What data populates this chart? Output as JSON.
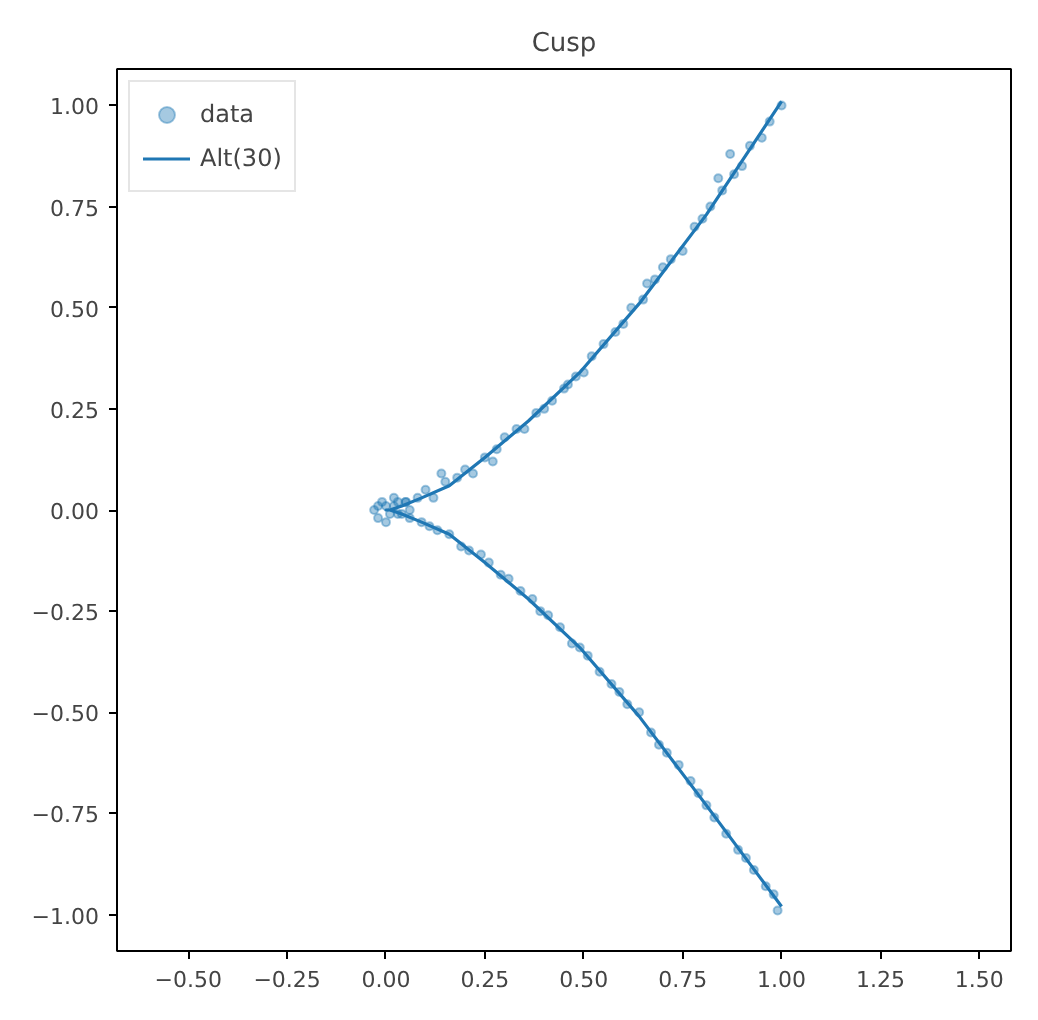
{
  "chart_data": {
    "type": "scatter",
    "title": "Cusp",
    "xlim": [
      -0.68,
      1.58
    ],
    "ylim": [
      -1.09,
      1.09
    ],
    "xticks": [
      {
        "value": -0.5,
        "label": "−0.50"
      },
      {
        "value": -0.25,
        "label": "−0.25"
      },
      {
        "value": 0,
        "label": "0.00"
      },
      {
        "value": 0.25,
        "label": "0.25"
      },
      {
        "value": 0.5,
        "label": "0.50"
      },
      {
        "value": 0.75,
        "label": "0.75"
      },
      {
        "value": 1,
        "label": "1.00"
      },
      {
        "value": 1.25,
        "label": "1.25"
      },
      {
        "value": 1.5,
        "label": "1.50"
      }
    ],
    "yticks": [
      {
        "value": -1,
        "label": "−1.00"
      },
      {
        "value": -0.75,
        "label": "−0.75"
      },
      {
        "value": -0.5,
        "label": "−0.50"
      },
      {
        "value": -0.25,
        "label": "−0.25"
      },
      {
        "value": 0,
        "label": "0.00"
      },
      {
        "value": 0.25,
        "label": "0.25"
      },
      {
        "value": 0.5,
        "label": "0.50"
      },
      {
        "value": 0.75,
        "label": "0.75"
      },
      {
        "value": 1,
        "label": "1.00"
      }
    ],
    "grid": false,
    "legend": "top left",
    "series": [
      {
        "name": "data",
        "marker": "circle",
        "color": "#1f77b4",
        "x": [
          0.02,
          0.05,
          0.08,
          0.1,
          0.12,
          0.15,
          0.18,
          0.2,
          0.22,
          0.25,
          0.28,
          0.3,
          0.33,
          0.35,
          0.38,
          0.4,
          0.42,
          0.45,
          0.48,
          0.5,
          0.52,
          0.55,
          0.58,
          0.6,
          0.62,
          0.65,
          0.68,
          0.7,
          0.72,
          0.75,
          0.78,
          0.8,
          0.82,
          0.85,
          0.88,
          0.9,
          0.92,
          0.95,
          0.97,
          1.0,
          0.84,
          0.87,
          0.66,
          0.46,
          0.27,
          0.14,
          0.03,
          0.06,
          0.09,
          0.11,
          0.13,
          0.16,
          0.19,
          0.21,
          0.24,
          0.26,
          0.29,
          0.31,
          0.34,
          0.37,
          0.39,
          0.41,
          0.44,
          0.47,
          0.49,
          0.51,
          0.54,
          0.57,
          0.59,
          0.61,
          0.64,
          0.67,
          0.69,
          0.71,
          0.74,
          0.77,
          0.79,
          0.81,
          0.83,
          0.86,
          0.89,
          0.91,
          0.93,
          0.96,
          0.98,
          0.99,
          -0.03,
          -0.02,
          0.0,
          0.01,
          0.03,
          -0.01,
          0.04,
          0.06,
          0.0,
          0.02,
          -0.02,
          0.05
        ],
        "values": [
          0.01,
          0.02,
          0.03,
          0.05,
          0.03,
          0.07,
          0.08,
          0.1,
          0.09,
          0.13,
          0.15,
          0.18,
          0.2,
          0.2,
          0.24,
          0.25,
          0.27,
          0.3,
          0.33,
          0.34,
          0.38,
          0.41,
          0.44,
          0.46,
          0.5,
          0.52,
          0.57,
          0.6,
          0.62,
          0.64,
          0.7,
          0.72,
          0.75,
          0.79,
          0.83,
          0.85,
          0.9,
          0.92,
          0.96,
          1.0,
          0.82,
          0.88,
          0.56,
          0.31,
          0.12,
          0.09,
          -0.01,
          -0.02,
          -0.03,
          -0.04,
          -0.05,
          -0.06,
          -0.09,
          -0.1,
          -0.11,
          -0.13,
          -0.16,
          -0.17,
          -0.2,
          -0.22,
          -0.25,
          -0.26,
          -0.29,
          -0.33,
          -0.34,
          -0.36,
          -0.4,
          -0.43,
          -0.45,
          -0.48,
          -0.5,
          -0.55,
          -0.58,
          -0.6,
          -0.63,
          -0.67,
          -0.7,
          -0.73,
          -0.76,
          -0.8,
          -0.84,
          -0.86,
          -0.89,
          -0.93,
          -0.95,
          -0.99,
          0.0,
          -0.02,
          0.01,
          -0.01,
          0.02,
          0.02,
          -0.01,
          0.0,
          -0.03,
          0.03,
          0.01,
          0.02
        ]
      },
      {
        "name": "Alt(30)",
        "type": "line",
        "color": "#1f77b4",
        "x": [
          1.0,
          0.81,
          0.64,
          0.49,
          0.36,
          0.25,
          0.16,
          0.09,
          0.04,
          0.01,
          0.0,
          0.01,
          0.04,
          0.09,
          0.16,
          0.25,
          0.36,
          0.49,
          0.64,
          0.81,
          1.0
        ],
        "values": [
          -0.98,
          -0.73,
          -0.51,
          -0.34,
          -0.22,
          -0.13,
          -0.06,
          -0.03,
          -0.01,
          0.0,
          0.0,
          0.0,
          0.01,
          0.03,
          0.06,
          0.13,
          0.22,
          0.34,
          0.51,
          0.73,
          1.01
        ]
      }
    ]
  }
}
